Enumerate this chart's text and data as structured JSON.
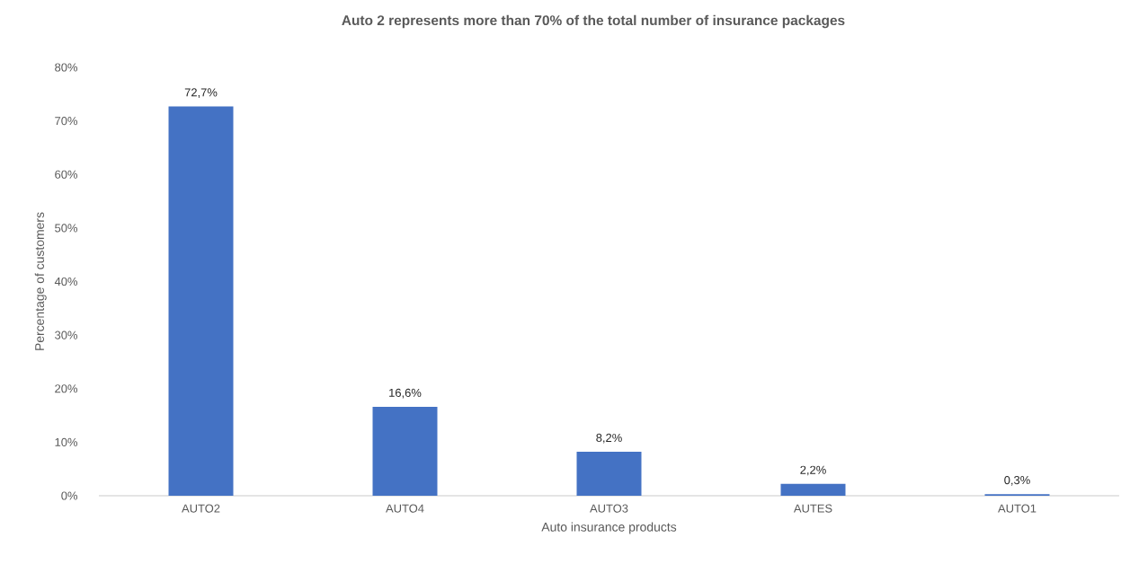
{
  "chart_data": {
    "type": "bar",
    "title": "Auto 2 represents more than 70% of the total number of insurance packages",
    "xlabel": "Auto insurance products",
    "ylabel": "Percentage of customers",
    "categories": [
      "AUTO2",
      "AUTO4",
      "AUTO3",
      "AUTES",
      "AUTO1"
    ],
    "values": [
      72.7,
      16.6,
      8.2,
      2.2,
      0.3
    ],
    "value_labels": [
      "72,7%",
      "16,6%",
      "8,2%",
      "2,2%",
      "0,3%"
    ],
    "color": "#4472c4",
    "ylim": [
      0,
      80
    ],
    "yticks": [
      {
        "value": 0,
        "label": "0%"
      },
      {
        "value": 10,
        "label": "10%"
      },
      {
        "value": 20,
        "label": "20%"
      },
      {
        "value": 30,
        "label": "30%"
      },
      {
        "value": 40,
        "label": "40%"
      },
      {
        "value": 50,
        "label": "50%"
      },
      {
        "value": 60,
        "label": "60%"
      },
      {
        "value": 70,
        "label": "70%"
      },
      {
        "value": 80,
        "label": "80%"
      }
    ],
    "grid": false
  }
}
